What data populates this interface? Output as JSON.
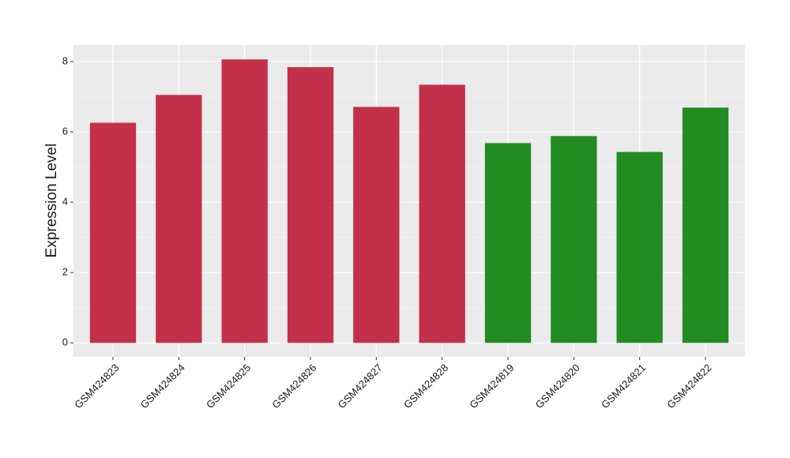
{
  "chart_data": {
    "type": "bar",
    "y_label": "Expression Level",
    "categories": [
      "GSM424823",
      "GSM424824",
      "GSM424825",
      "GSM424826",
      "GSM424827",
      "GSM424828",
      "GSM424819",
      "GSM424820",
      "GSM424821",
      "GSM424822"
    ],
    "values": [
      6.26,
      7.05,
      8.06,
      7.84,
      6.71,
      7.34,
      5.68,
      5.88,
      5.43,
      6.69
    ],
    "colors": [
      "#c3304a",
      "#c3304a",
      "#c3304a",
      "#c3304a",
      "#c3304a",
      "#c3304a",
      "#228b22",
      "#228b22",
      "#228b22",
      "#228b22"
    ],
    "ylim": [
      -0.4,
      8.47
    ],
    "yticks": [
      0,
      2,
      4,
      6,
      8
    ],
    "grid": true
  }
}
